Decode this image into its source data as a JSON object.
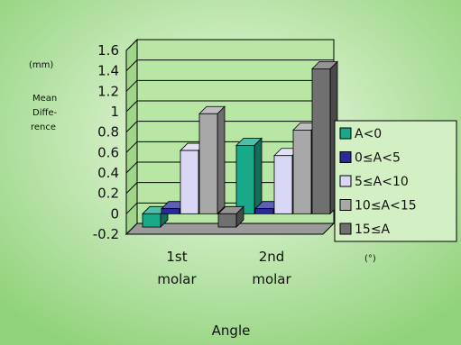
{
  "chart_data": {
    "type": "bar",
    "categories": [
      "1st molar",
      "2nd molar"
    ],
    "category_lines": [
      [
        "1st",
        "molar"
      ],
      [
        "2nd",
        "molar"
      ]
    ],
    "series": [
      {
        "name": "A<0",
        "values": [
          -0.13,
          0.67
        ],
        "color": "#1aa88a"
      },
      {
        "name": "0≤A<5",
        "values": [
          0.05,
          0.05
        ],
        "color": "#2a2a9a"
      },
      {
        "name": "5≤A<10",
        "values": [
          0.62,
          0.57
        ],
        "color": "#d8d8f4"
      },
      {
        "name": "10≤A<15",
        "values": [
          0.98,
          0.82
        ],
        "color": "#a8a8a8"
      },
      {
        "name": "15≤A",
        "values": [
          -0.13,
          1.42
        ],
        "color": "#707070"
      }
    ],
    "ylim": [
      -0.2,
      1.6
    ],
    "yticks": [
      "-0.2",
      "0",
      "0.2",
      "0.4",
      "0.6",
      "0.8",
      "1",
      "1.2",
      "1.4",
      "1.6"
    ],
    "y_unit": "(mm)",
    "ylabel_lines": [
      "Mean",
      "Diffe-",
      "rence"
    ],
    "xlabel": "Angle",
    "legend_unit": "(°)",
    "legend_position": "right",
    "grid": true
  },
  "colors": {
    "background_center": "#f2fbe8",
    "background_edge": "#8fd27a",
    "plot_wall": "#b8e6a4"
  }
}
